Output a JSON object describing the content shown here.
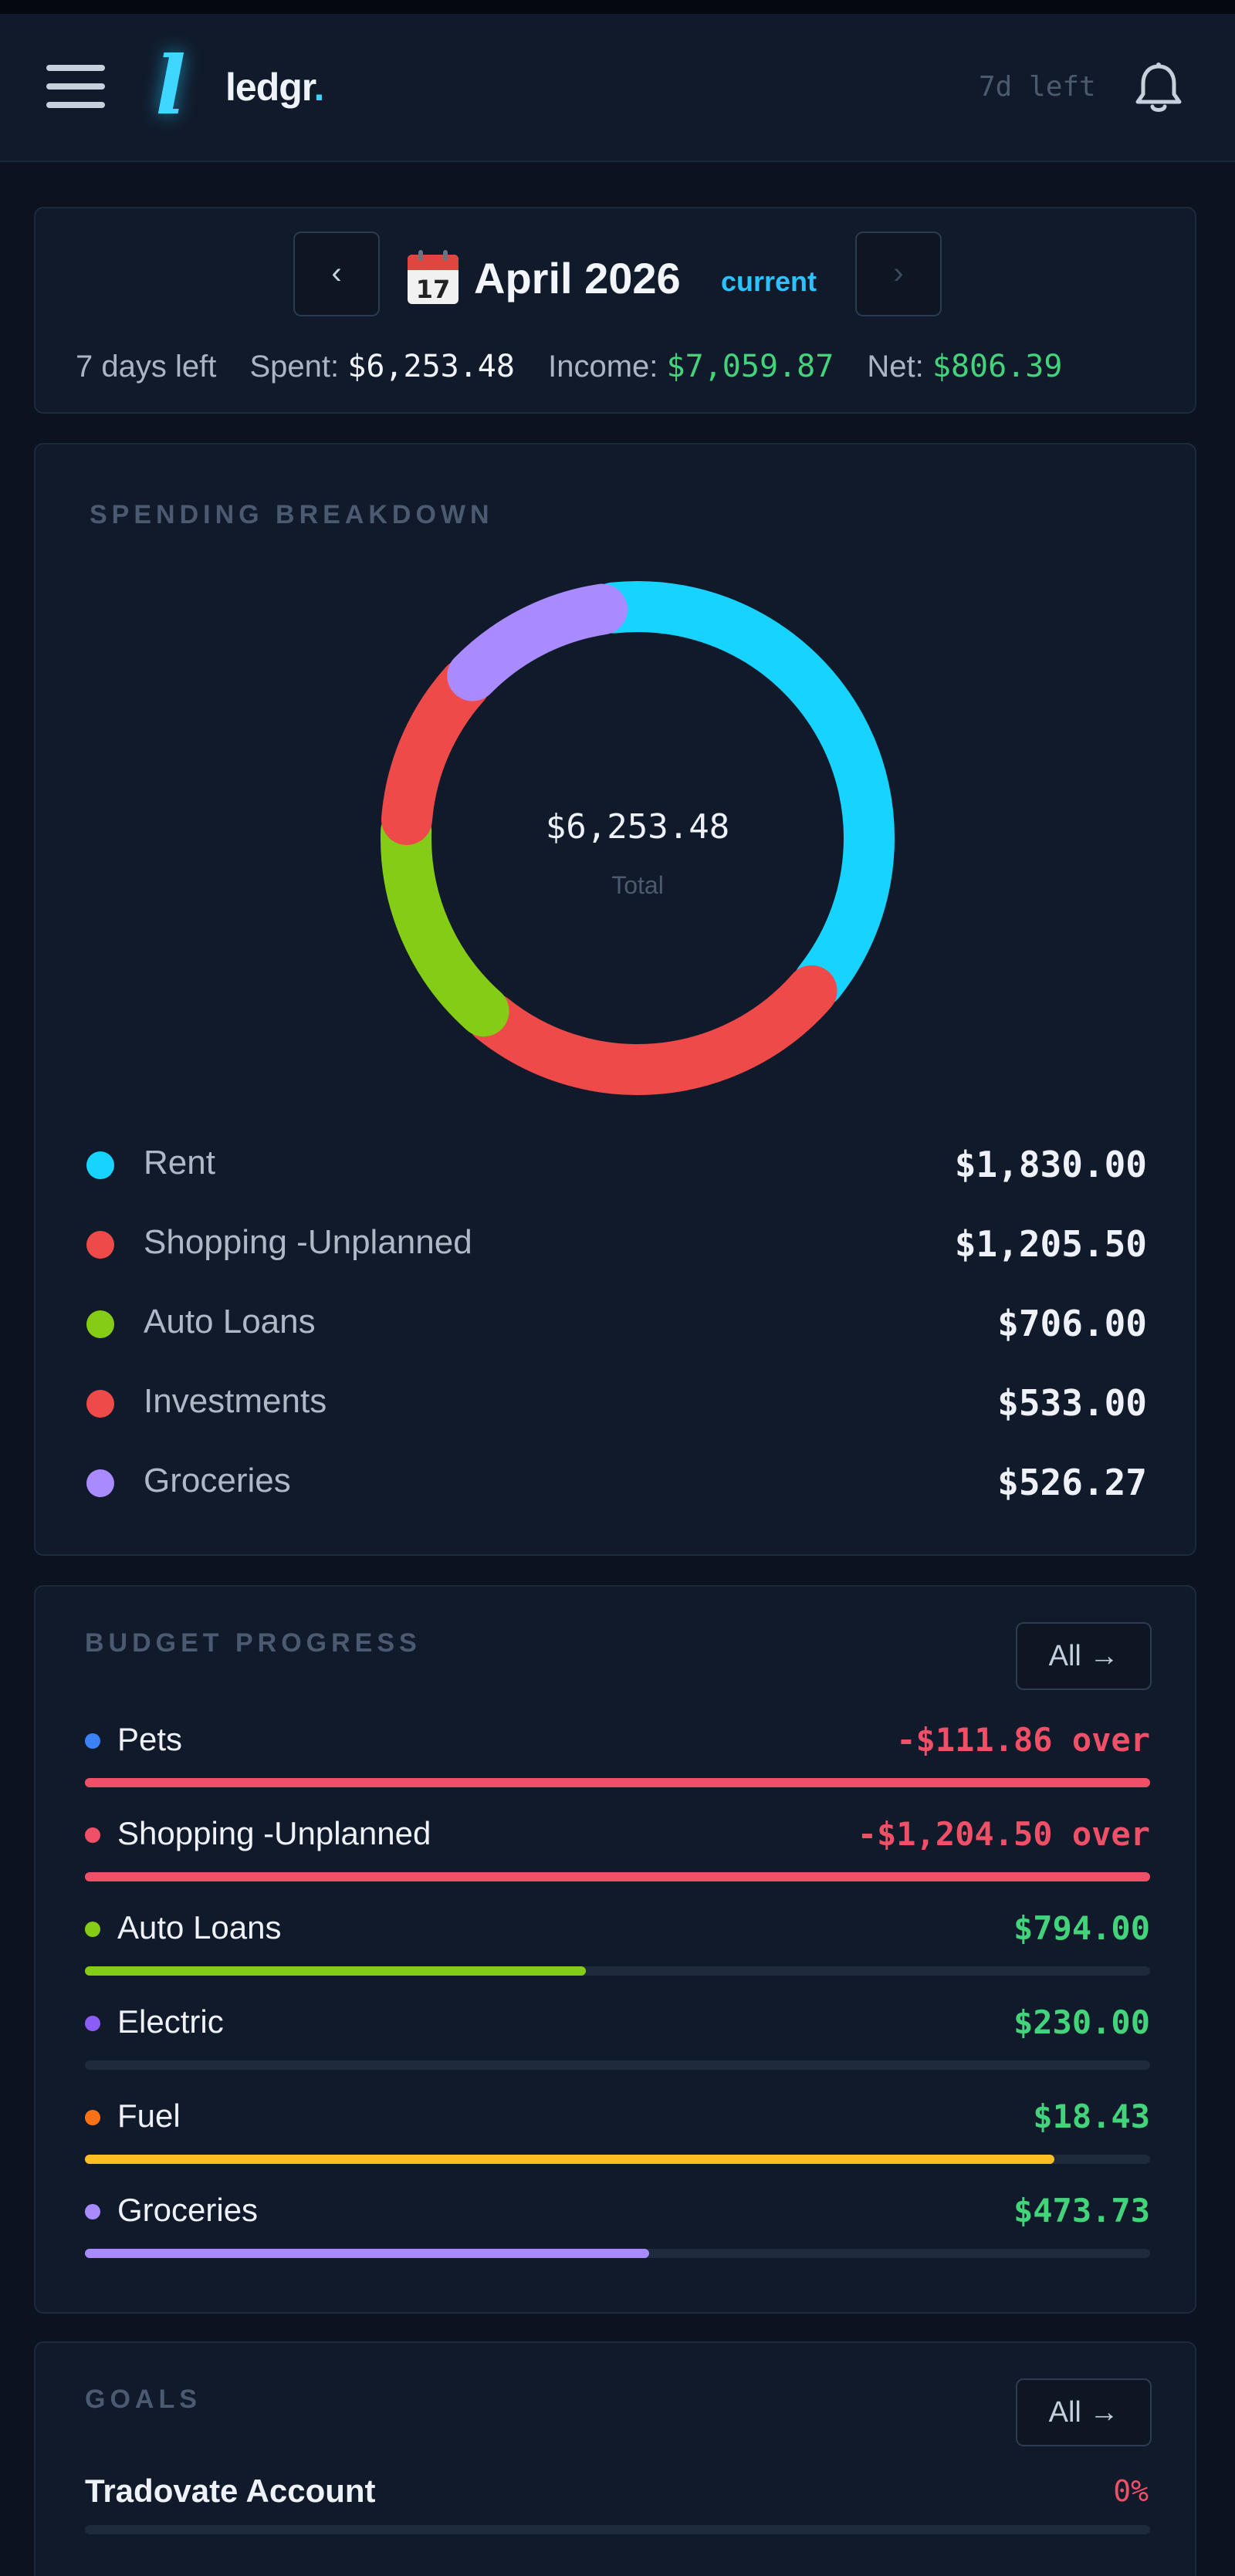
{
  "header": {
    "logo_mark": "l",
    "logo_text": "ledgr",
    "logo_dot": ".",
    "days_left": "7d left",
    "menu_icon": "hamburger-icon",
    "bell_icon": "bell-icon"
  },
  "month": {
    "prev_label": "‹",
    "next_label": "›",
    "calendar_icon": "calendar-icon",
    "calendar_day": "17",
    "title": "April 2026",
    "tag": "current",
    "days_left": "7 days left",
    "spent_label": "Spent:",
    "spent_value": "$6,253.48",
    "income_label": "Income:",
    "income_value": "$7,059.87",
    "net_label": "Net:",
    "net_value": "$806.39"
  },
  "spending": {
    "title": "SPENDING BREAKDOWN",
    "center_value": "$6,253.48",
    "center_label": "Total"
  },
  "chart_data": {
    "type": "pie",
    "categories": [
      "Rent",
      "Shopping -Unplanned",
      "Auto Loans",
      "Investments",
      "Groceries"
    ],
    "values": [
      1830.0,
      1205.5,
      706.0,
      533.0,
      526.27
    ],
    "value_labels": [
      "$1,830.00",
      "$1,205.50",
      "$706.00",
      "$533.00",
      "$526.27"
    ],
    "colors": [
      "#16d4ff",
      "#ef4a4a",
      "#84cc16",
      "#ef4a4a",
      "#a98bff"
    ],
    "total": 6253.48,
    "legend": "below"
  },
  "budget": {
    "title": "BUDGET PROGRESS",
    "all_label": "All →",
    "items": [
      {
        "label": "Pets",
        "value": "-$111.86 over",
        "status": "over",
        "dot_color": "#3b82f6",
        "bar_color": "#ef4f67",
        "progress": 1.0
      },
      {
        "label": "Shopping -Unplanned",
        "value": "-$1,204.50 over",
        "status": "over",
        "dot_color": "#ef4f67",
        "bar_color": "#ef4f67",
        "progress": 1.0
      },
      {
        "label": "Auto Loans",
        "value": "$794.00",
        "status": "ok",
        "dot_color": "#84cc16",
        "bar_color": "#84cc16",
        "progress": 0.47
      },
      {
        "label": "Electric",
        "value": "$230.00",
        "status": "ok",
        "dot_color": "#8b5cf6",
        "bar_color": "#8b5cf6",
        "progress": 0.0
      },
      {
        "label": "Fuel",
        "value": "$18.43",
        "status": "ok",
        "dot_color": "#f97316",
        "bar_color": "#fbbf24",
        "progress": 0.91
      },
      {
        "label": "Groceries",
        "value": "$473.73",
        "status": "ok",
        "dot_color": "#a98bff",
        "bar_color": "#a98bff",
        "progress": 0.53
      }
    ]
  },
  "goals": {
    "title": "GOALS",
    "all_label": "All →",
    "items": [
      {
        "label": "Tradovate Account",
        "percent": "0%",
        "progress": 0.0
      }
    ]
  }
}
